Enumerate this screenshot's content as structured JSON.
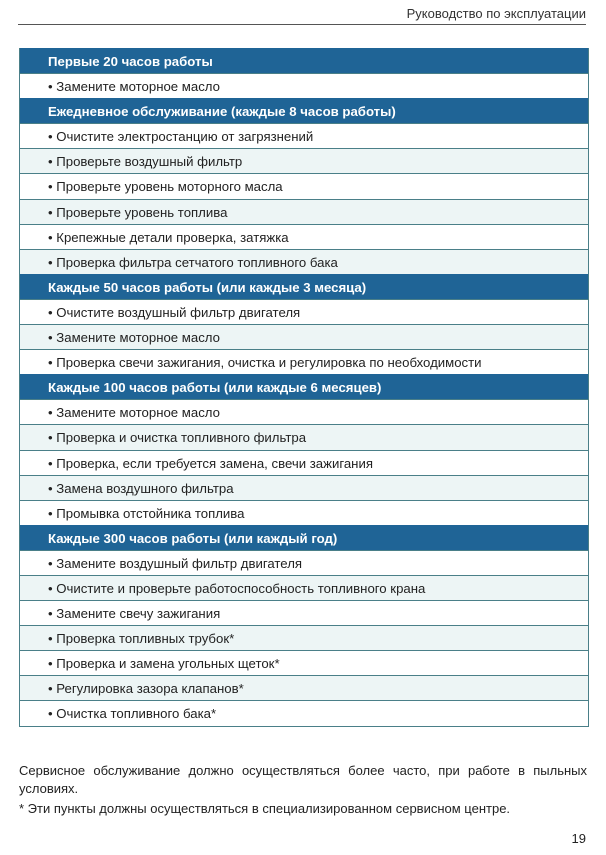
{
  "header": {
    "title": "Руководство по эксплуатации"
  },
  "sections": [
    {
      "title": "Первые 20 часов работы",
      "items": [
        "• Замените моторное масло"
      ]
    },
    {
      "title": "Ежедневное обслуживание (каждые 8 часов работы)",
      "items": [
        "• Очистите электростанцию от загрязнений",
        "• Проверьте воздушный фильтр",
        "• Проверьте уровень моторного масла",
        "• Проверьте уровень топлива",
        "• Крепежные детали проверка, затяжка",
        "• Проверка фильтра сетчатого топливного бака"
      ]
    },
    {
      "title": "Каждые 50 часов работы (или каждые 3 месяца)",
      "items": [
        "• Очистите воздушный фильтр двигателя",
        "• Замените моторное масло",
        "• Проверка свечи зажигания, очистка и регулировка по необходимости"
      ]
    },
    {
      "title": "Каждые 100 часов работы (или каждые 6 месяцев)",
      "items": [
        "• Замените моторное масло",
        "• Проверка и очистка топливного фильтра",
        "• Проверка, если требуется замена, свечи зажигания",
        "• Замена воздушного фильтра",
        "• Промывка отстойника топлива"
      ]
    },
    {
      "title": "Каждые 300 часов работы (или каждый год)",
      "items": [
        "• Замените воздушный фильтр двигателя",
        "• Очистите и проверьте работоспособность топливного крана",
        "• Замените свечу зажигания",
        "• Проверка топливных трубок*",
        "• Проверка и замена угольных щеток*",
        "• Регулировка  зазора клапанов*",
        "• Очистка топливного бака*"
      ]
    }
  ],
  "notes": [
    "Сервисное обслуживание должно осуществляться более часто, при работе в пыльных условиях.",
    "* Эти пункты должны осуществляться в специализированном сервисном центре."
  ],
  "page_number": "19",
  "colors": {
    "section_header": "#1f6496",
    "row_tint": "#edf5f5",
    "border": "#4a7f88"
  }
}
